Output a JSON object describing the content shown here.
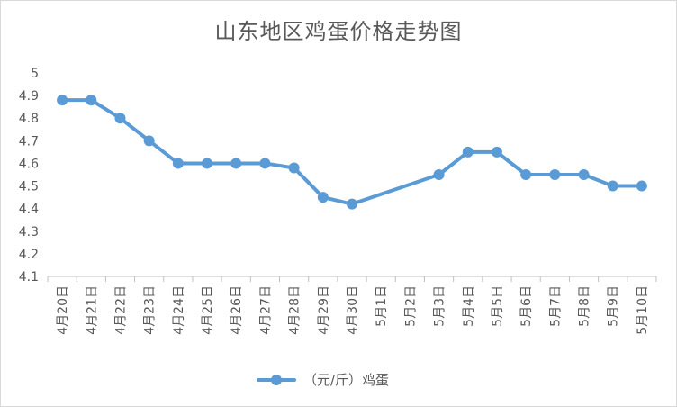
{
  "chart_data": {
    "type": "line",
    "title": "山东地区鸡蛋价格走势图",
    "categories": [
      "4月20日",
      "4月21日",
      "4月22日",
      "4月23日",
      "4月24日",
      "4月25日",
      "4月26日",
      "4月27日",
      "4月28日",
      "4月29日",
      "4月30日",
      "5月1日",
      "5月2日",
      "5月3日",
      "5月4日",
      "5月5日",
      "5月6日",
      "5月7日",
      "5月8日",
      "5月9日",
      "5月10日"
    ],
    "series": [
      {
        "name": "（元/斤）鸡蛋",
        "color": "#5B9BD5",
        "values": [
          4.88,
          4.88,
          4.8,
          4.7,
          4.6,
          4.6,
          4.6,
          4.6,
          4.58,
          4.45,
          4.42,
          null,
          null,
          4.55,
          4.65,
          4.65,
          4.55,
          4.55,
          4.55,
          4.5,
          4.5
        ]
      }
    ],
    "yticks": [
      "4.1",
      "4.2",
      "4.3",
      "4.4",
      "4.5",
      "4.6",
      "4.7",
      "4.8",
      "4.9",
      "5"
    ],
    "ylim": [
      4.1,
      5.0
    ],
    "grid": false,
    "legend_position": "bottom",
    "xlabel": "",
    "ylabel": ""
  }
}
